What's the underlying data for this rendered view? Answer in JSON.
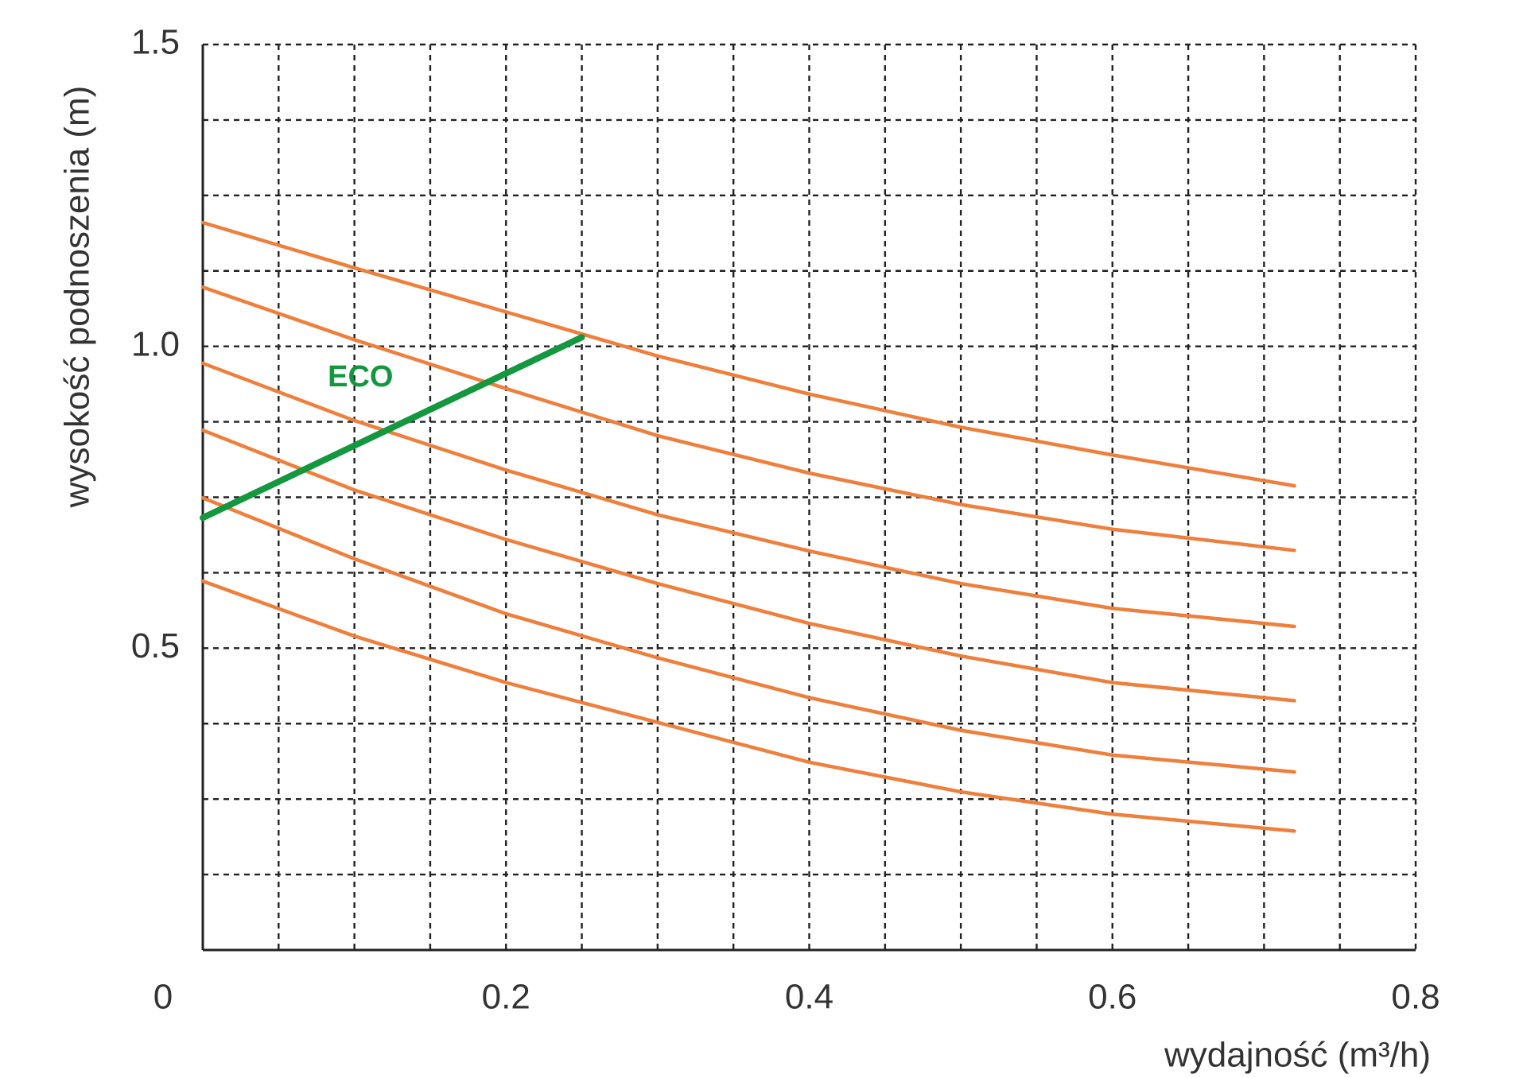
{
  "chart_data": {
    "type": "line",
    "x_label": "wydajność (m³/h)",
    "y_label": "wysokość podnoszenia (m)",
    "xlim": [
      0,
      0.8
    ],
    "ylim": [
      0,
      1.5
    ],
    "xticks": [
      0,
      0.2,
      0.4,
      0.6,
      0.8
    ],
    "yticks": [
      0.5,
      {
        "value": 1,
        "label": "1.0"
      },
      1.5
    ],
    "grid": true,
    "xgrid": [
      0.05,
      0.1,
      0.15,
      0.2,
      0.25,
      0.3,
      0.35,
      0.4,
      0.45,
      0.5,
      0.55,
      0.6,
      0.65,
      0.7,
      0.75,
      0.8
    ],
    "ygrid": [
      0.125,
      0.25,
      0.375,
      0.5,
      0.625,
      0.75,
      0.875,
      1,
      1.125,
      1.25,
      1.375,
      1.5
    ],
    "x": [
      0,
      0.1,
      0.2,
      0.3,
      0.4,
      0.5,
      0.6,
      0.72
    ],
    "series": [
      {
        "color": "#ee7f3c",
        "values": [
          1.205,
          1.13,
          1.057,
          0.984,
          0.921,
          0.866,
          0.82,
          0.769
        ]
      },
      {
        "color": "#ee7f3c",
        "values": [
          1.098,
          1.011,
          0.93,
          0.852,
          0.79,
          0.738,
          0.697,
          0.662
        ]
      },
      {
        "color": "#ee7f3c",
        "values": [
          0.972,
          0.877,
          0.795,
          0.721,
          0.661,
          0.607,
          0.566,
          0.536
        ]
      },
      {
        "color": "#ee7f3c",
        "values": [
          0.861,
          0.762,
          0.68,
          0.607,
          0.541,
          0.487,
          0.443,
          0.413
        ]
      },
      {
        "color": "#ee7f3c",
        "values": [
          0.749,
          0.648,
          0.557,
          0.484,
          0.418,
          0.364,
          0.323,
          0.295
        ]
      },
      {
        "color": "#ee7f3c",
        "values": [
          0.611,
          0.52,
          0.443,
          0.377,
          0.311,
          0.262,
          0.225,
          0.197
        ]
      },
      {
        "name": "ECO",
        "color": "#13973f",
        "x": [
          0,
          0.25
        ],
        "values": [
          0.716,
          1.015
        ]
      }
    ]
  }
}
